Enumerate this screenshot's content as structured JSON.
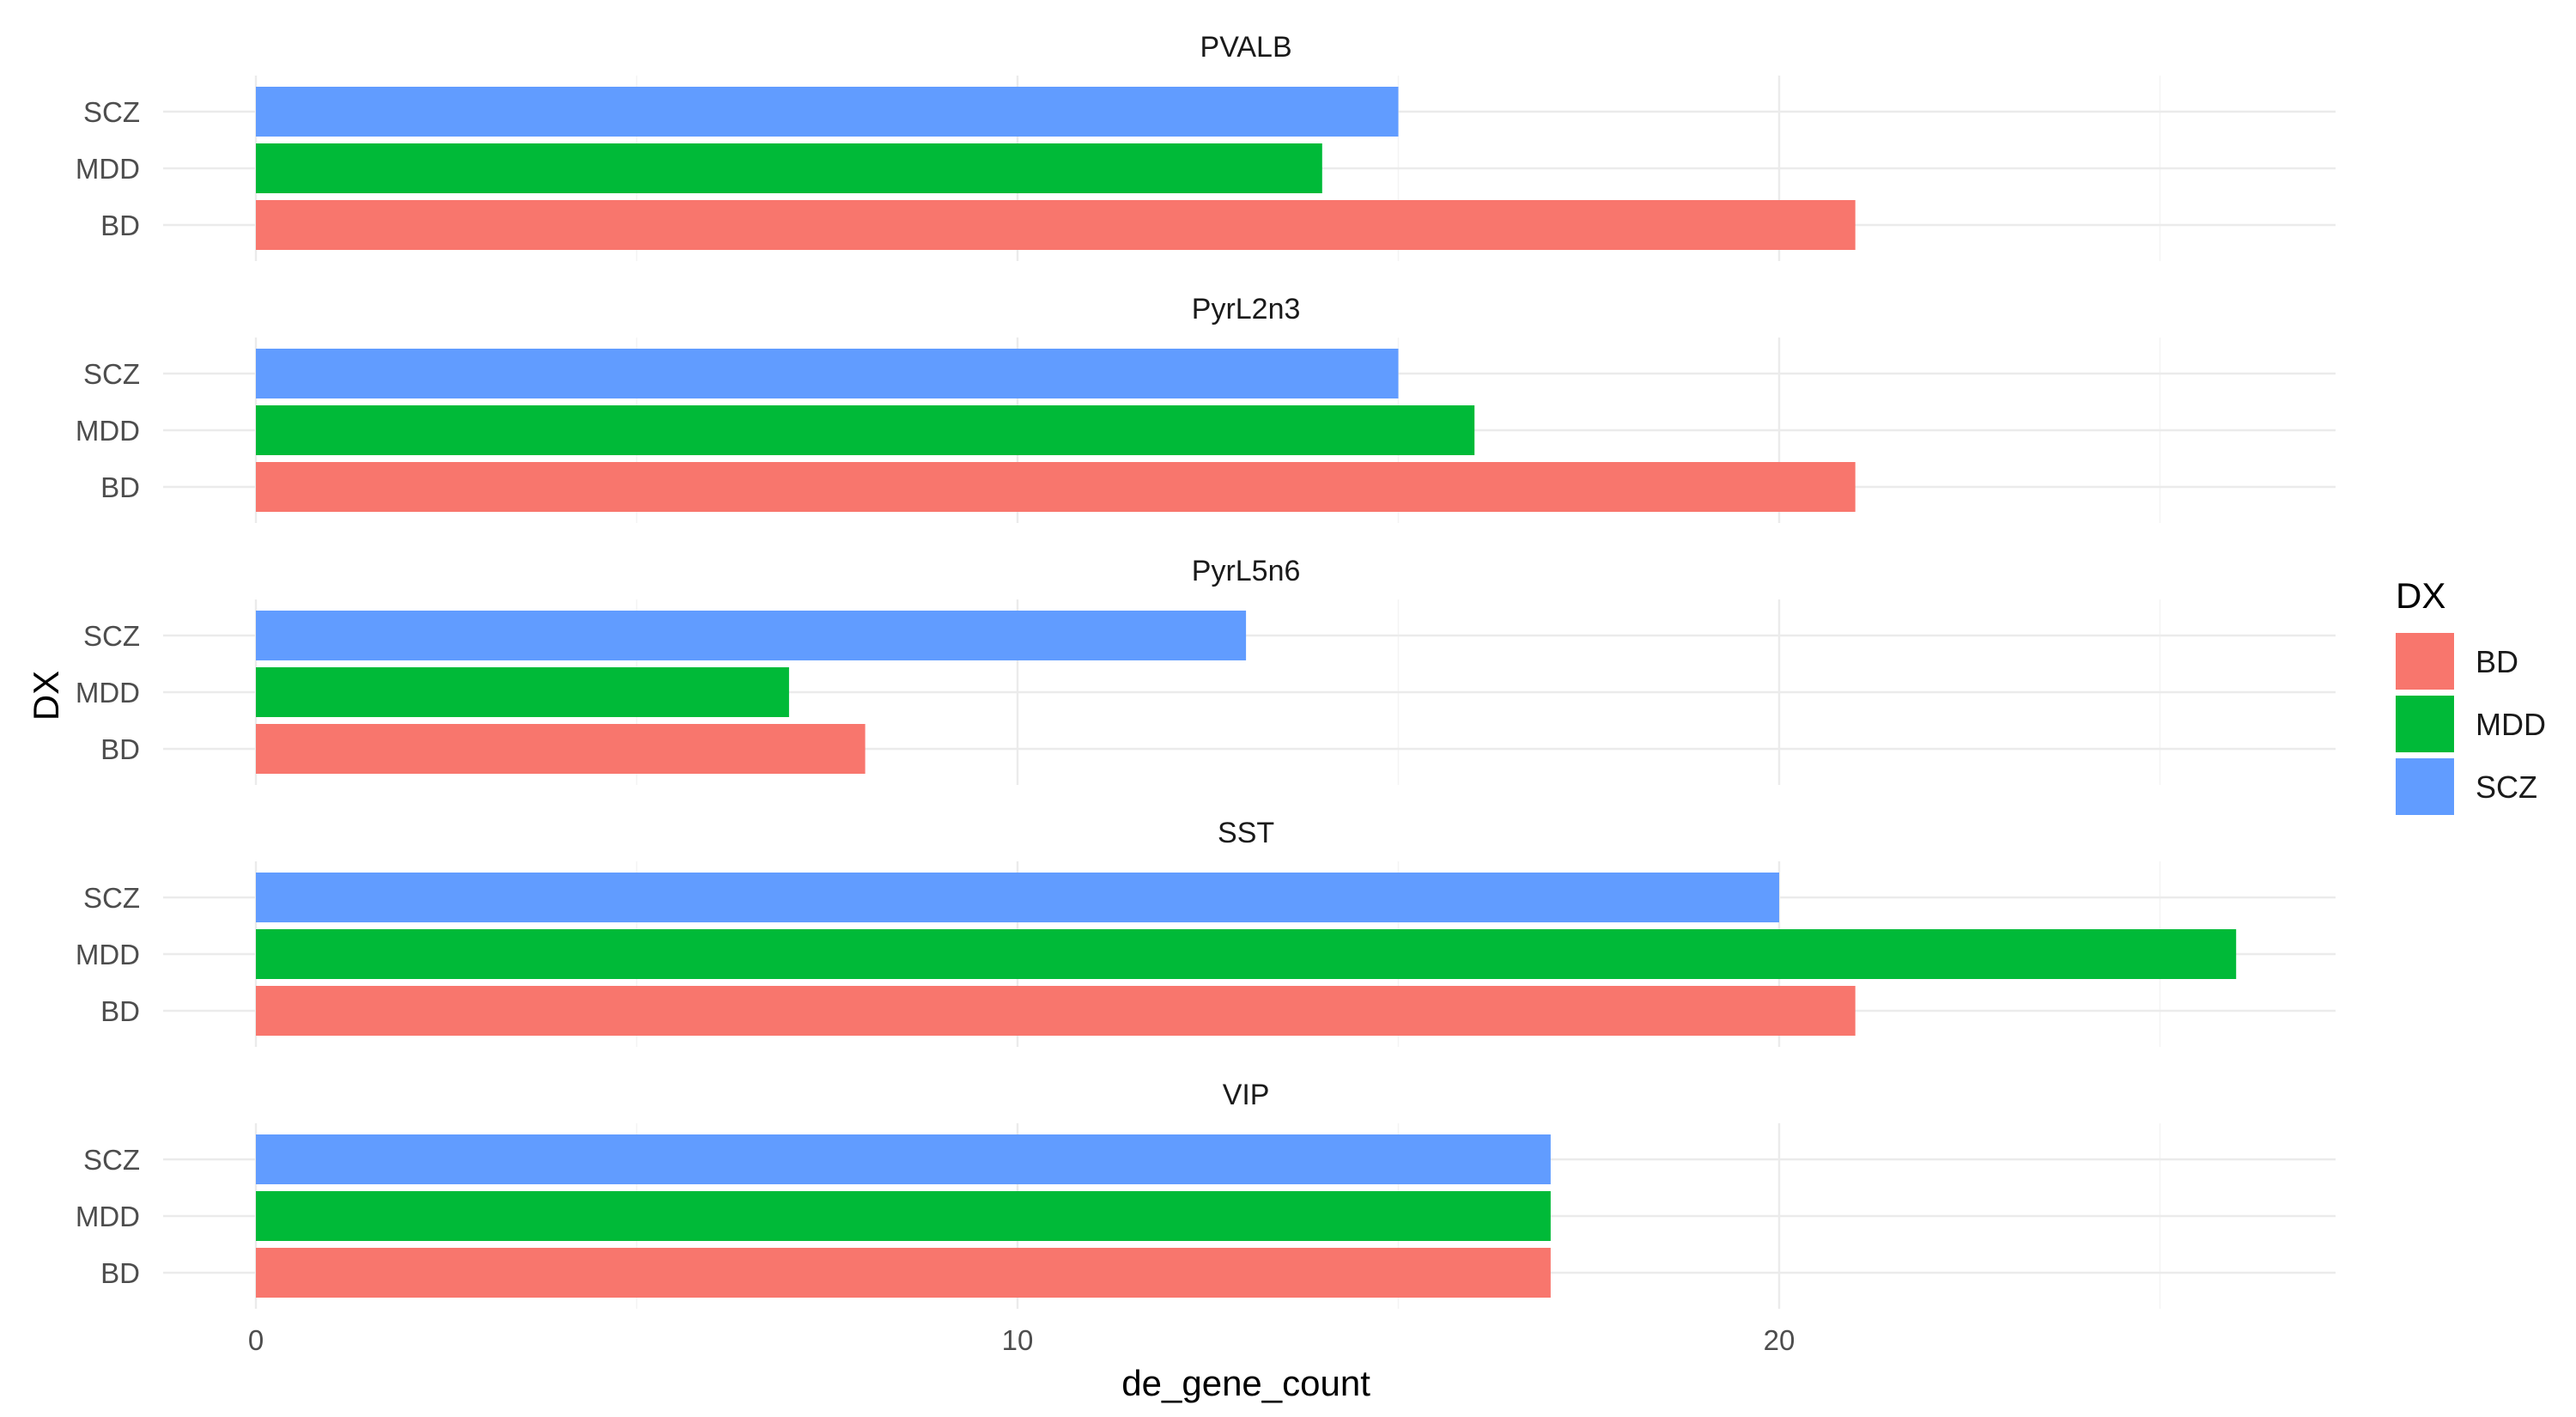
{
  "chart_data": {
    "type": "bar",
    "orientation": "horizontal",
    "facet_by": "cell_type",
    "panels": [
      "PVALB",
      "PyrL2n3",
      "PyrL5n6",
      "SST",
      "VIP"
    ],
    "categories": [
      "BD",
      "MDD",
      "SCZ"
    ],
    "series": [
      {
        "panel": "PVALB",
        "values": {
          "BD": 21,
          "MDD": 14,
          "SCZ": 15
        }
      },
      {
        "panel": "PyrL2n3",
        "values": {
          "BD": 21,
          "MDD": 16,
          "SCZ": 15
        }
      },
      {
        "panel": "PyrL5n6",
        "values": {
          "BD": 8,
          "MDD": 7,
          "SCZ": 13
        }
      },
      {
        "panel": "SST",
        "values": {
          "BD": 21,
          "MDD": 26,
          "SCZ": 20
        }
      },
      {
        "panel": "VIP",
        "values": {
          "BD": 17,
          "MDD": 17,
          "SCZ": 17
        }
      }
    ],
    "xlabel": "de_gene_count",
    "ylabel": "DX",
    "xlim": [
      -1.3,
      27.3
    ],
    "xticks": [
      0,
      10,
      20
    ],
    "grid": true,
    "legend": {
      "title": "DX",
      "placement": "right",
      "items": [
        "BD",
        "MDD",
        "SCZ"
      ]
    },
    "colors": {
      "BD": "#F8766D",
      "MDD": "#00BA38",
      "SCZ": "#619CFF"
    }
  }
}
